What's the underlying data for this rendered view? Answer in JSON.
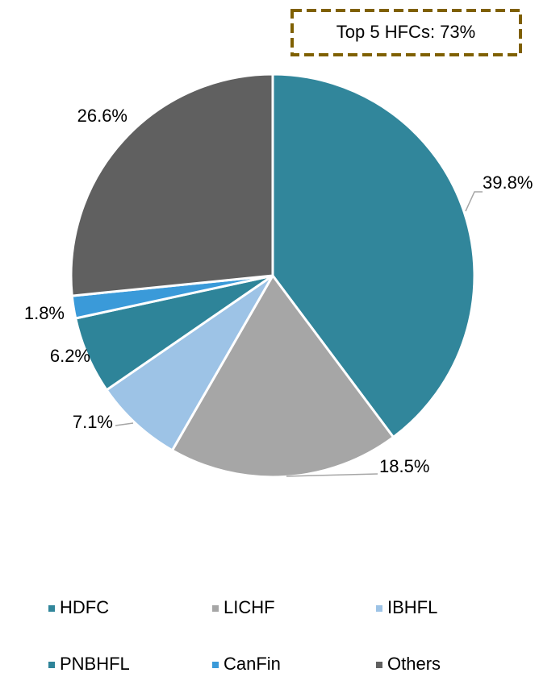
{
  "chart_data": {
    "type": "pie",
    "annotation": "Top 5 HFCs: 73%",
    "categories": [
      "HDFC",
      "LICHF",
      "IBHFL",
      "PNBHFL",
      "CanFin",
      "Others"
    ],
    "values": [
      39.8,
      18.5,
      7.1,
      6.2,
      1.8,
      26.6
    ],
    "value_labels": [
      "39.8%",
      "18.5%",
      "7.1%",
      "6.2%",
      "1.8%",
      "26.6%"
    ],
    "colors": [
      "#31869b",
      "#a6a6a6",
      "#9dc3e6",
      "#2e8499",
      "#3a9ad9",
      "#606060"
    ],
    "legend": "bottom"
  }
}
